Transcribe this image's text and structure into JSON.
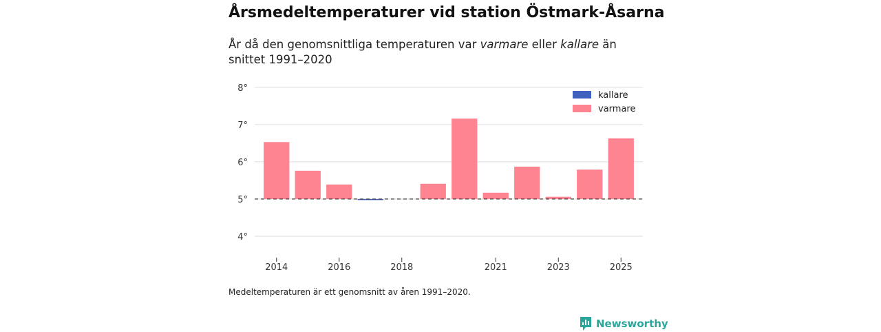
{
  "title": "Årsmedeltemperaturer vid station Östmark-Åsarna",
  "subtitle": {
    "part1": "År då den genomsnittliga temperaturen var ",
    "em1": "varmare",
    "part2": " eller ",
    "em2": "kallare",
    "part3": " än snittet 1991–2020"
  },
  "note": "Medeltemperaturen är ett genomsnitt av åren 1991–2020.",
  "brand": "Newsworthy",
  "colors": {
    "kallare": "#4060c0",
    "varmare": "#ff8492",
    "grid": "#dddddd",
    "baseline": "#333333",
    "brand": "#2aa59a"
  },
  "chart_data": {
    "type": "bar",
    "baseline": 5.0,
    "ylim": [
      3.5,
      8.2
    ],
    "yticks": [
      4,
      5,
      6,
      7,
      8
    ],
    "ytick_suffix": "°",
    "categories": [
      2014,
      2015,
      2016,
      2017,
      2018,
      2019,
      2020,
      2021,
      2022,
      2023,
      2024,
      2025
    ],
    "values": [
      6.53,
      5.76,
      5.39,
      4.99,
      null,
      5.41,
      7.16,
      5.17,
      5.87,
      5.06,
      5.79,
      6.63
    ],
    "xticks": [
      2014,
      2016,
      2018,
      2021,
      2023,
      2025
    ],
    "legend": [
      {
        "key": "kallare",
        "label": "kallare"
      },
      {
        "key": "varmare",
        "label": "varmare"
      }
    ],
    "legend_position": "top-right"
  }
}
